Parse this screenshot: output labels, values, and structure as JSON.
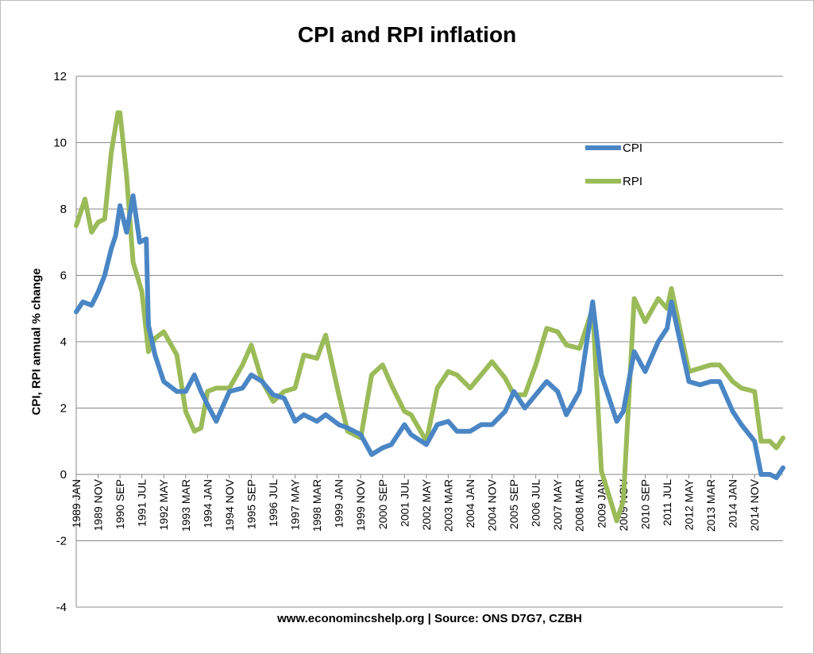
{
  "chart_data": {
    "type": "line",
    "title": "CPI and RPI inflation",
    "ylabel": "CPI, RPI annual % change",
    "xlabel": "www.economincshelp.org | Source: ONS D7G7, CZBH",
    "ylim": [
      -4,
      12
    ],
    "yticks": [
      -4,
      -2,
      0,
      2,
      4,
      6,
      8,
      10,
      12
    ],
    "grid": "horizontal",
    "legend_position": "top-right",
    "x_tick_labels": [
      "1989 JAN",
      "1989 NOV",
      "1990 SEP",
      "1991 JUL",
      "1992 MAY",
      "1993 MAR",
      "1994 JAN",
      "1994 NOV",
      "1995 SEP",
      "1996 JUL",
      "1997 MAY",
      "1998 MAR",
      "1999 JAN",
      "1999 NOV",
      "2000 SEP",
      "2001 JUL",
      "2002 MAY",
      "2003 MAR",
      "2004 JAN",
      "2004 NOV",
      "2005 SEP",
      "2006 JUL",
      "2007 MAY",
      "2008 MAR",
      "2009 JAN",
      "2009 NOV",
      "2010 SEP",
      "2011 JUL",
      "2012 MAY",
      "2013 MAR",
      "2014 JAN",
      "2014 NOV"
    ],
    "series": [
      {
        "name": "CPI",
        "color": "#4a86c5",
        "points": [
          [
            "1989 JAN",
            4.9
          ],
          [
            "1989 APR",
            5.2
          ],
          [
            "1989 AUG",
            5.1
          ],
          [
            "1989 NOV",
            5.5
          ],
          [
            "1990 FEB",
            6.0
          ],
          [
            "1990 MAY",
            6.8
          ],
          [
            "1990 JUL",
            7.2
          ],
          [
            "1990 SEP",
            8.1
          ],
          [
            "1990 DEC",
            7.3
          ],
          [
            "1991 MAR",
            8.4
          ],
          [
            "1991 JUN",
            7.0
          ],
          [
            "1991 SEP",
            7.1
          ],
          [
            "1991 OCT",
            4.5
          ],
          [
            "1992 JAN",
            3.6
          ],
          [
            "1992 MAY",
            2.8
          ],
          [
            "1992 NOV",
            2.5
          ],
          [
            "1993 MAR",
            2.5
          ],
          [
            "1993 JUL",
            3.0
          ],
          [
            "1993 OCT",
            2.5
          ],
          [
            "1994 JAN",
            2.1
          ],
          [
            "1994 MAY",
            1.6
          ],
          [
            "1994 NOV",
            2.5
          ],
          [
            "1995 MAY",
            2.6
          ],
          [
            "1995 SEP",
            3.0
          ],
          [
            "1996 FEB",
            2.8
          ],
          [
            "1996 JUL",
            2.4
          ],
          [
            "1996 DEC",
            2.3
          ],
          [
            "1997 MAY",
            1.6
          ],
          [
            "1997 SEP",
            1.8
          ],
          [
            "1998 MAR",
            1.6
          ],
          [
            "1998 JUL",
            1.8
          ],
          [
            "1999 JAN",
            1.5
          ],
          [
            "1999 MAY",
            1.4
          ],
          [
            "1999 NOV",
            1.2
          ],
          [
            "2000 APR",
            0.6
          ],
          [
            "2000 SEP",
            0.8
          ],
          [
            "2001 JAN",
            0.9
          ],
          [
            "2001 JUL",
            1.5
          ],
          [
            "2001 OCT",
            1.2
          ],
          [
            "2002 MAY",
            0.9
          ],
          [
            "2002 OCT",
            1.5
          ],
          [
            "2003 MAR",
            1.6
          ],
          [
            "2003 JUL",
            1.3
          ],
          [
            "2004 JAN",
            1.3
          ],
          [
            "2004 JUN",
            1.5
          ],
          [
            "2004 NOV",
            1.5
          ],
          [
            "2005 MAY",
            1.9
          ],
          [
            "2005 SEP",
            2.5
          ],
          [
            "2006 FEB",
            2.0
          ],
          [
            "2006 JUL",
            2.4
          ],
          [
            "2006 DEC",
            2.8
          ],
          [
            "2007 MAY",
            2.5
          ],
          [
            "2007 SEP",
            1.8
          ],
          [
            "2008 MAR",
            2.5
          ],
          [
            "2008 SEP",
            5.2
          ],
          [
            "2009 JAN",
            3.0
          ],
          [
            "2009 AUG",
            1.6
          ],
          [
            "2009 NOV",
            1.9
          ],
          [
            "2010 APR",
            3.7
          ],
          [
            "2010 SEP",
            3.1
          ],
          [
            "2011 MAR",
            4.0
          ],
          [
            "2011 JUL",
            4.4
          ],
          [
            "2011 SEP",
            5.2
          ],
          [
            "2012 MAY",
            2.8
          ],
          [
            "2012 OCT",
            2.7
          ],
          [
            "2013 MAR",
            2.8
          ],
          [
            "2013 JUL",
            2.8
          ],
          [
            "2014 JAN",
            1.9
          ],
          [
            "2014 MAY",
            1.5
          ],
          [
            "2014 NOV",
            1.0
          ],
          [
            "2015 FEB",
            0.0
          ],
          [
            "2015 JUN",
            0.0
          ],
          [
            "2015 SEP",
            -0.1
          ],
          [
            "2015 DEC",
            0.2
          ]
        ]
      },
      {
        "name": "RPI",
        "color": "#9bbb59",
        "points": [
          [
            "1989 JAN",
            7.5
          ],
          [
            "1989 MAY",
            8.3
          ],
          [
            "1989 AUG",
            7.3
          ],
          [
            "1989 NOV",
            7.6
          ],
          [
            "1990 FEB",
            7.7
          ],
          [
            "1990 MAY",
            9.7
          ],
          [
            "1990 AUG",
            10.9
          ],
          [
            "1990 SEP",
            10.9
          ],
          [
            "1990 DEC",
            9.0
          ],
          [
            "1991 MAR",
            6.4
          ],
          [
            "1991 JUL",
            5.5
          ],
          [
            "1991 OCT",
            3.7
          ],
          [
            "1992 JAN",
            4.1
          ],
          [
            "1992 MAY",
            4.3
          ],
          [
            "1992 NOV",
            3.6
          ],
          [
            "1993 MAR",
            1.9
          ],
          [
            "1993 JUL",
            1.3
          ],
          [
            "1993 OCT",
            1.4
          ],
          [
            "1994 JAN",
            2.5
          ],
          [
            "1994 MAY",
            2.6
          ],
          [
            "1994 NOV",
            2.6
          ],
          [
            "1995 MAY",
            3.3
          ],
          [
            "1995 SEP",
            3.9
          ],
          [
            "1996 FEB",
            2.8
          ],
          [
            "1996 JUL",
            2.2
          ],
          [
            "1996 DEC",
            2.5
          ],
          [
            "1997 MAY",
            2.6
          ],
          [
            "1997 SEP",
            3.6
          ],
          [
            "1998 MAR",
            3.5
          ],
          [
            "1998 JUL",
            4.2
          ],
          [
            "1999 JAN",
            2.4
          ],
          [
            "1999 MAY",
            1.3
          ],
          [
            "1999 NOV",
            1.1
          ],
          [
            "2000 APR",
            3.0
          ],
          [
            "2000 SEP",
            3.3
          ],
          [
            "2001 JAN",
            2.7
          ],
          [
            "2001 JUL",
            1.9
          ],
          [
            "2001 OCT",
            1.8
          ],
          [
            "2002 MAY",
            1.0
          ],
          [
            "2002 OCT",
            2.6
          ],
          [
            "2003 MAR",
            3.1
          ],
          [
            "2003 JUL",
            3.0
          ],
          [
            "2004 JAN",
            2.6
          ],
          [
            "2004 JUN",
            3.0
          ],
          [
            "2004 NOV",
            3.4
          ],
          [
            "2005 MAY",
            2.9
          ],
          [
            "2005 SEP",
            2.4
          ],
          [
            "2006 FEB",
            2.4
          ],
          [
            "2006 JUL",
            3.3
          ],
          [
            "2006 DEC",
            4.4
          ],
          [
            "2007 MAY",
            4.3
          ],
          [
            "2007 SEP",
            3.9
          ],
          [
            "2008 MAR",
            3.8
          ],
          [
            "2008 SEP",
            5.0
          ],
          [
            "2009 JAN",
            0.1
          ],
          [
            "2009 AUG",
            -1.4
          ],
          [
            "2009 NOV",
            -0.8
          ],
          [
            "2010 APR",
            5.3
          ],
          [
            "2010 SEP",
            4.6
          ],
          [
            "2011 MAR",
            5.3
          ],
          [
            "2011 JUL",
            5.0
          ],
          [
            "2011 SEP",
            5.6
          ],
          [
            "2012 MAY",
            3.1
          ],
          [
            "2012 OCT",
            3.2
          ],
          [
            "2013 MAR",
            3.3
          ],
          [
            "2013 JUL",
            3.3
          ],
          [
            "2014 JAN",
            2.8
          ],
          [
            "2014 MAY",
            2.6
          ],
          [
            "2014 NOV",
            2.5
          ],
          [
            "2015 FEB",
            1.0
          ],
          [
            "2015 JUN",
            1.0
          ],
          [
            "2015 SEP",
            0.8
          ],
          [
            "2015 DEC",
            1.1
          ]
        ]
      }
    ]
  }
}
